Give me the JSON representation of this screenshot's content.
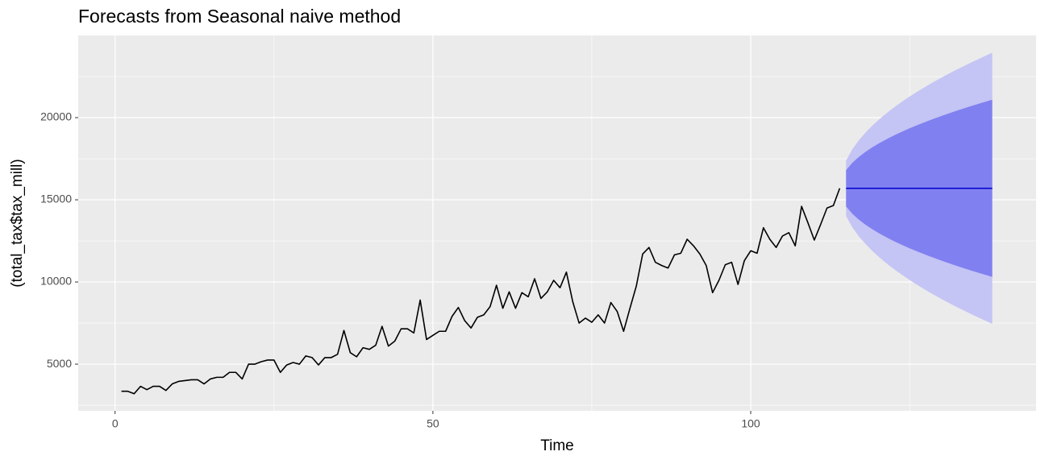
{
  "chart_data": {
    "type": "line",
    "title": "Forecasts from Seasonal naive method",
    "xlabel": "Time",
    "ylabel": "(total_tax$tax_mill)",
    "xlim": [
      -5.8,
      144.9
    ],
    "ylim": [
      2160,
      25000
    ],
    "xticks": [
      0,
      50,
      100
    ],
    "yticks": [
      5000,
      10000,
      15000,
      20000
    ],
    "x_minor_grid": [
      25,
      75,
      125
    ],
    "y_minor_grid": [
      2500,
      7500,
      12500,
      17500,
      22500
    ],
    "grid": true,
    "panel_color": "#ebebeb",
    "series": [
      {
        "color": "#000000",
        "x": [
          1,
          2,
          3,
          4,
          5,
          6,
          7,
          8,
          9,
          10,
          11,
          12,
          13,
          14,
          15,
          16,
          17,
          18,
          19,
          20,
          21,
          22,
          23,
          24,
          25,
          26,
          27,
          28,
          29,
          30,
          31,
          32,
          33,
          34,
          35,
          36,
          37,
          38,
          39,
          40,
          41,
          42,
          43,
          44,
          45,
          46,
          47,
          48,
          49,
          50,
          51,
          52,
          53,
          54,
          55,
          56,
          57,
          58,
          59,
          60,
          61,
          62,
          63,
          64,
          65,
          66,
          67,
          68,
          69,
          70,
          71,
          72,
          73,
          74,
          75,
          76,
          77,
          78,
          79,
          80,
          81,
          82,
          83,
          84,
          85,
          86,
          87,
          88,
          89,
          90,
          91,
          92,
          93,
          94,
          95,
          96,
          97,
          98,
          99,
          100,
          101,
          102,
          103,
          104,
          105,
          106,
          107,
          108,
          109,
          110,
          111,
          112,
          113,
          114
        ],
        "values": [
          3350,
          3350,
          3200,
          3650,
          3450,
          3650,
          3650,
          3400,
          3800,
          3950,
          4000,
          4050,
          4050,
          3800,
          4100,
          4200,
          4200,
          4500,
          4500,
          4100,
          5000,
          5000,
          5150,
          5250,
          5250,
          4500,
          4950,
          5100,
          5000,
          5500,
          5400,
          4950,
          5400,
          5400,
          5600,
          7050,
          5700,
          5450,
          6000,
          5900,
          6150,
          7300,
          6100,
          6400,
          7150,
          7150,
          6900,
          8900,
          6500,
          6750,
          7000,
          7000,
          7900,
          8450,
          7650,
          7200,
          7850,
          8000,
          8500,
          9800,
          8400,
          9400,
          8400,
          9350,
          9100,
          10200,
          9000,
          9400,
          10100,
          9650,
          10600,
          8800,
          7500,
          7800,
          7550,
          8000,
          7500,
          8750,
          8200,
          7000,
          8400,
          9750,
          11700,
          12100,
          11200,
          11000,
          10850,
          11650,
          11750,
          12600,
          12200,
          11700,
          11000,
          9350,
          10100,
          11050,
          11200,
          9850,
          11300,
          11900,
          11750,
          13300,
          12600,
          12100,
          12800,
          13000,
          12200,
          14600,
          13600,
          12550,
          13500,
          14500,
          14650,
          15700
        ]
      },
      {
        "color": "#0000cc",
        "x": [
          115,
          116,
          117,
          118,
          119,
          120,
          121,
          122,
          123,
          124,
          125,
          126,
          127,
          128,
          129,
          130,
          131,
          132,
          133,
          134,
          135,
          136,
          137,
          138
        ],
        "values": [
          15700,
          15700,
          15700,
          15700,
          15700,
          15700,
          15700,
          15700,
          15700,
          15700,
          15700,
          15700,
          15700,
          15700,
          15700,
          15700,
          15700,
          15700,
          15700,
          15700,
          15700,
          15700,
          15700,
          15700
        ]
      }
    ],
    "intervals": [
      {
        "color": "#c4c4f5",
        "x": [
          115,
          116,
          117,
          118,
          119,
          120,
          121,
          122,
          123,
          124,
          125,
          126,
          127,
          128,
          129,
          130,
          131,
          132,
          133,
          134,
          135,
          136,
          137,
          138
        ],
        "lower": [
          14017,
          13319,
          12785,
          12334,
          11936,
          11578,
          11248,
          10940,
          10651,
          10379,
          10117,
          9869,
          9632,
          9403,
          9182,
          8968,
          8761,
          8559,
          8364,
          8174,
          7987,
          7807,
          7628,
          7455
        ],
        "upper": [
          17383,
          18081,
          18615,
          19066,
          19464,
          19822,
          20152,
          20460,
          20749,
          21021,
          21283,
          21531,
          21768,
          21997,
          22218,
          22432,
          22639,
          22841,
          23036,
          23226,
          23413,
          23593,
          23772,
          23945
        ]
      },
      {
        "color": "#8080f0",
        "x": [
          115,
          116,
          117,
          118,
          119,
          120,
          121,
          122,
          123,
          124,
          125,
          126,
          127,
          128,
          129,
          130,
          131,
          132,
          133,
          134,
          135,
          136,
          137,
          138
        ],
        "lower": [
          14600,
          14144,
          13795,
          13500,
          13240,
          13006,
          12790,
          12589,
          12400,
          12222,
          12051,
          11889,
          11734,
          11584,
          11440,
          11300,
          11165,
          11033,
          10905,
          10781,
          10659,
          10541,
          10424,
          10311
        ],
        "upper": [
          16800,
          17256,
          17605,
          17900,
          18160,
          18394,
          18610,
          18811,
          19000,
          19178,
          19349,
          19511,
          19666,
          19816,
          19960,
          20100,
          20235,
          20367,
          20495,
          20619,
          20741,
          20859,
          20976,
          21089
        ]
      }
    ]
  }
}
